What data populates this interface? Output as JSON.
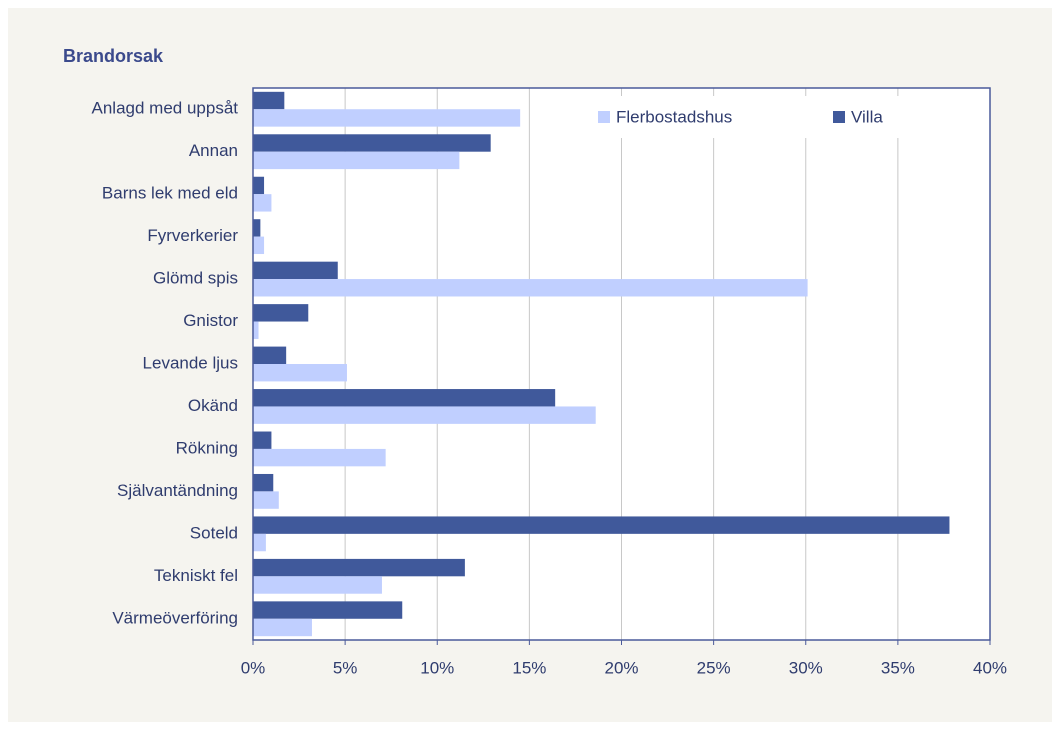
{
  "chart_data": {
    "type": "hbar",
    "title": "Brandorsak",
    "categories": [
      "Anlagd med uppsåt",
      "Annan",
      "Barns lek med eld",
      "Fyrverkerier",
      "Glömd spis",
      "Gnistor",
      "Levande ljus",
      "Okänd",
      "Rökning",
      "Självantändning",
      "Soteld",
      "Tekniskt fel",
      "Värmeöverföring"
    ],
    "series": [
      {
        "name": "Flerbostadshus",
        "color": "#c0cfff",
        "values": [
          14.5,
          11.2,
          1.0,
          0.6,
          30.1,
          0.3,
          5.1,
          18.6,
          7.2,
          1.4,
          0.7,
          7.0,
          3.2
        ]
      },
      {
        "name": "Villa",
        "color": "#40599b",
        "values": [
          1.7,
          12.9,
          0.6,
          0.4,
          4.6,
          3.0,
          1.8,
          16.4,
          1.0,
          1.1,
          37.8,
          11.5,
          8.1
        ]
      }
    ],
    "xlim": [
      0,
      40
    ],
    "xticks": [
      {
        "value": 0,
        "label": "0%"
      },
      {
        "value": 5,
        "label": "5%"
      },
      {
        "value": 10,
        "label": "10%"
      },
      {
        "value": 15,
        "label": "15%"
      },
      {
        "value": 20,
        "label": "20%"
      },
      {
        "value": 25,
        "label": "25%"
      },
      {
        "value": 30,
        "label": "30%"
      },
      {
        "value": 35,
        "label": "35%"
      },
      {
        "value": 40,
        "label": "40%"
      }
    ],
    "grid": true,
    "legend": "top-right"
  }
}
